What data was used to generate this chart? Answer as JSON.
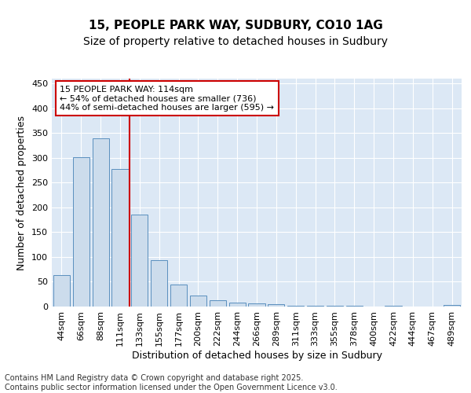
{
  "title_line1": "15, PEOPLE PARK WAY, SUDBURY, CO10 1AG",
  "title_line2": "Size of property relative to detached houses in Sudbury",
  "xlabel": "Distribution of detached houses by size in Sudbury",
  "ylabel": "Number of detached properties",
  "bar_labels": [
    "44sqm",
    "66sqm",
    "88sqm",
    "111sqm",
    "133sqm",
    "155sqm",
    "177sqm",
    "200sqm",
    "222sqm",
    "244sqm",
    "266sqm",
    "289sqm",
    "311sqm",
    "333sqm",
    "355sqm",
    "378sqm",
    "400sqm",
    "422sqm",
    "444sqm",
    "467sqm",
    "489sqm"
  ],
  "bar_values": [
    63,
    301,
    340,
    278,
    185,
    94,
    45,
    23,
    13,
    8,
    6,
    4,
    2,
    1,
    1,
    1,
    0,
    1,
    0,
    0,
    3
  ],
  "bar_color": "#ccdcec",
  "bar_edge_color": "#5a8fbe",
  "vline_x": 3.5,
  "vline_color": "#cc0000",
  "annotation_text": "15 PEOPLE PARK WAY: 114sqm\n← 54% of detached houses are smaller (736)\n44% of semi-detached houses are larger (595) →",
  "annotation_box_color": "#ffffff",
  "annotation_box_edge": "#cc0000",
  "ylim": [
    0,
    460
  ],
  "yticks": [
    0,
    50,
    100,
    150,
    200,
    250,
    300,
    350,
    400,
    450
  ],
  "background_color": "#dce8f5",
  "grid_color": "#ffffff",
  "fig_background": "#ffffff",
  "footer_text": "Contains HM Land Registry data © Crown copyright and database right 2025.\nContains public sector information licensed under the Open Government Licence v3.0.",
  "title_fontsize": 11,
  "subtitle_fontsize": 10,
  "axis_label_fontsize": 9,
  "tick_fontsize": 8,
  "annotation_fontsize": 8,
  "footer_fontsize": 7
}
